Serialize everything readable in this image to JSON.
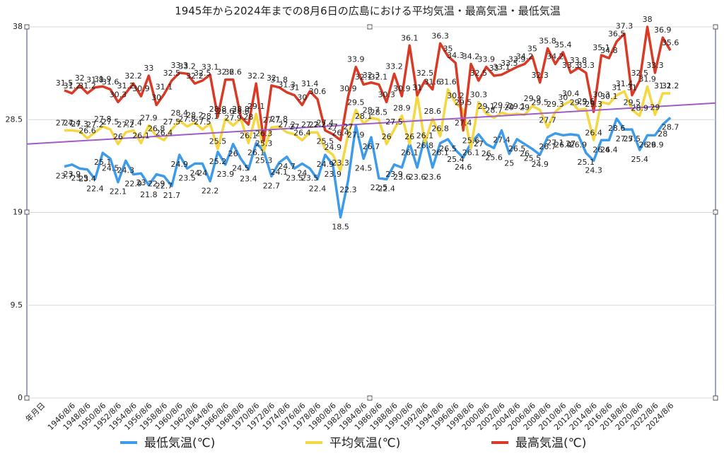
{
  "chart_data": {
    "type": "line",
    "title": "1945年から2024年までの8月6日の広島における平均気温・最高気温・最低気温",
    "x_label": "年月日",
    "categories": [
      null,
      "1946/8/6",
      null,
      "1948/8/6",
      null,
      "1950/8/6",
      null,
      "1952/8/6",
      null,
      "1954/8/6",
      null,
      "1956/8/6",
      null,
      "1958/8/6",
      null,
      "1960/8/6",
      null,
      "1962/8/6",
      null,
      "1964/8/6",
      null,
      "1966/8/6",
      null,
      "1968/8/6",
      null,
      "1970/8/6",
      null,
      "1972/8/6",
      null,
      "1974/8/6",
      null,
      "1976/8/6",
      null,
      "1978/8/6",
      null,
      "1980/8/6",
      null,
      "1982/8/6",
      null,
      "1984/8/6",
      null,
      "1986/8/6",
      null,
      "1988/8/6",
      null,
      "1990/8/6",
      null,
      "1992/8/6",
      null,
      "1994/8/6",
      null,
      "1996/8/6",
      null,
      "1998/8/6",
      null,
      "2000/8/6",
      null,
      "2002/8/6",
      null,
      "2004/8/6",
      null,
      "2006/8/6",
      null,
      "2008/8/6",
      null,
      "2010/8/6",
      null,
      "2012/8/6",
      null,
      "2014/8/6",
      null,
      "2016/8/6",
      null,
      "2018/8/6",
      null,
      "2020/8/6",
      null,
      "2022/8/6",
      null,
      "2024/8/6"
    ],
    "ylim": [
      0,
      38
    ],
    "yticks": [
      0,
      9.5,
      19,
      28.5,
      38
    ],
    "grid": true,
    "series": [
      {
        "name": "最低気温(℃)",
        "color": "#3d9be9",
        "values": [
          23.7,
          23.9,
          23.5,
          23.4,
          22.4,
          25.1,
          24.5,
          22.1,
          24.3,
          22.9,
          23.0,
          21.8,
          22.9,
          22.7,
          21.7,
          24.9,
          23.5,
          24.0,
          24.0,
          22.2,
          25.2,
          23.9,
          26.0,
          24.5,
          23.4,
          26.1,
          25.3,
          22.7,
          24.1,
          24.7,
          23.5,
          24.0,
          23.5,
          22.4,
          24.9,
          23.9,
          18.5,
          22.3,
          27.9,
          24.5,
          26.7,
          22.5,
          22.4,
          23.9,
          23.6,
          26.1,
          23.6,
          26.8,
          23.6,
          26.1,
          26.5,
          25.4,
          24.6,
          26.1,
          27.0,
          26.0,
          25.6,
          27.4,
          25,
          26.5,
          26,
          25.5,
          24.9,
          26.7,
          27.1,
          26.9,
          27.0,
          26.9,
          25.1,
          24.3,
          26.4,
          26.4,
          28.6,
          27.5,
          27.5,
          25.4,
          26.9,
          26.9,
          28.0,
          28.7
        ]
      },
      {
        "name": "平均気温(℃)",
        "color": "#f5d742",
        "values": [
          27.4,
          27.4,
          27.3,
          26.6,
          27.2,
          27.8,
          27.5,
          26.0,
          27.2,
          27.4,
          26.1,
          27.9,
          26.8,
          26.4,
          27.5,
          28.4,
          27.8,
          28.2,
          27.5,
          28.1,
          25.5,
          28.6,
          27.9,
          28.6,
          26.1,
          29.1,
          25.3,
          27.7,
          27.8,
          27.2,
          27.0,
          26.4,
          27.2,
          27.2,
          25.5,
          24.9,
          23.3,
          27,
          29.5,
          28.1,
          28.7,
          28.5,
          26,
          27.5,
          28.9,
          26.0,
          31,
          26.1,
          28.6,
          26.8,
          31.6,
          30.2,
          29.5,
          25.6,
          30.3,
          29.1,
          28.7,
          29.2,
          29.0,
          29.1,
          29.0,
          29.9,
          29.5,
          27.7,
          29.3,
          30.0,
          30.4,
          29.5,
          29.6,
          26.4,
          30.3,
          30.1,
          31.0,
          31.4,
          29.5,
          28.9,
          31.9,
          29,
          31.2,
          31.2
        ]
      },
      {
        "name": "最高気温(℃)",
        "color": "#d93a26",
        "values": [
          31.5,
          31.2,
          32,
          31.2,
          31.8,
          31.9,
          31.6,
          30.3,
          31.2,
          32.2,
          30.9,
          33,
          30,
          31.1,
          32.5,
          33.3,
          33.2,
          32.2,
          32.5,
          33.1,
          28.8,
          32.6,
          32.6,
          28.8,
          28.0,
          32.2,
          26.3,
          32,
          31.8,
          31.3,
          31.0,
          30,
          31.4,
          30.6,
          27.4,
          27.0,
          26.4,
          30.9,
          33.9,
          32.1,
          32.3,
          32.1,
          30.3,
          33.2,
          30.9,
          36.1,
          31.0,
          32.5,
          31.6,
          36.3,
          35.0,
          34.3,
          27.4,
          34.2,
          32.5,
          33.9,
          33,
          33.1,
          33.5,
          33.9,
          34.2,
          35,
          32.3,
          35.8,
          34.2,
          35.4,
          33.3,
          33.8,
          33.3,
          29.3,
          35.1,
          34.8,
          36.5,
          37.3,
          31.0,
          32.5,
          38,
          33.3,
          36.9,
          35.6
        ]
      }
    ],
    "trendline": {
      "color": "#a05cc8",
      "start": 26.0,
      "end": 30.2
    }
  }
}
